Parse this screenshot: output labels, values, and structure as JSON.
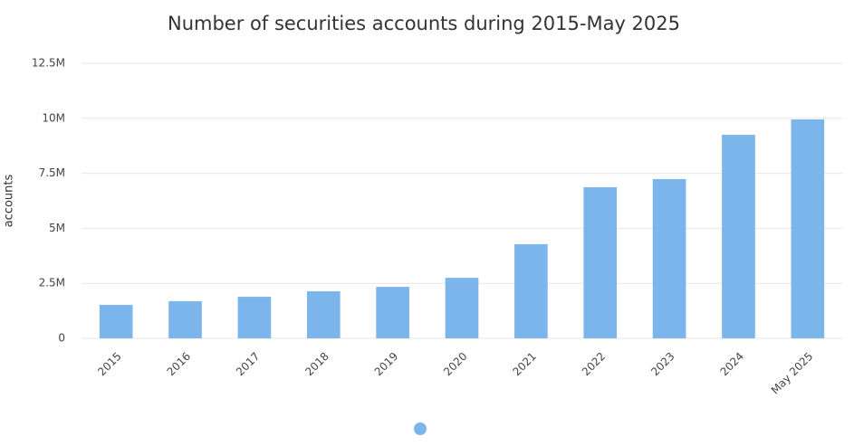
{
  "chart_data": {
    "type": "bar",
    "title": "Number of securities accounts during 2015-May 2025",
    "y_label": "accounts",
    "categories": [
      "2015",
      "2016",
      "2017",
      "2018",
      "2019",
      "2020",
      "2021",
      "2022",
      "2023",
      "2024",
      "May 2025"
    ],
    "values": [
      1520000,
      1690000,
      1890000,
      2140000,
      2340000,
      2750000,
      4280000,
      6870000,
      7240000,
      9250000,
      9950000
    ],
    "color": "#7cb5ec",
    "ylim": [
      0,
      12500000
    ],
    "yticks": [
      0,
      {
        "value": 2500000,
        "label": "2.5M"
      },
      {
        "value": 5000000,
        "label": "5M"
      },
      {
        "value": 7500000,
        "label": "7.5M"
      },
      {
        "value": 10000000,
        "label": "10M"
      },
      {
        "value": 12500000,
        "label": "12.5M"
      }
    ],
    "grid": true
  }
}
